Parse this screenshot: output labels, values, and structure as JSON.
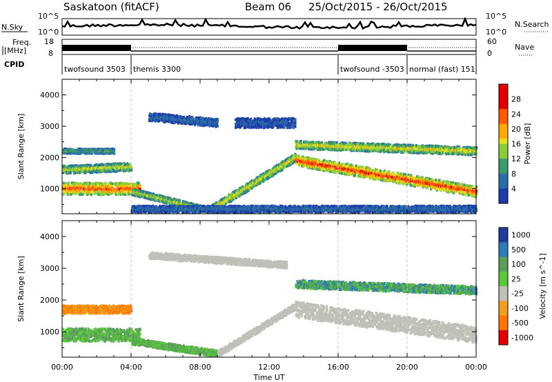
{
  "header": {
    "title": "Saskatoon (fitACF)",
    "beam": "Beam 06",
    "date_range": "25/Oct/2015 - 26/Oct/2015"
  },
  "strips": {
    "noise": {
      "left_label": "N.Sky",
      "left_ticks": [
        "10^5",
        "10^0"
      ],
      "right_ticks": [
        "10^5",
        "10^0"
      ],
      "right_label": "N.Search"
    },
    "freq": {
      "left_label": "Freq.",
      "left_units": "[MHz]",
      "left_ticks": [
        "18",
        "8"
      ],
      "right_ticks": [
        "60",
        "0"
      ],
      "right_label": "Nave"
    },
    "cpid": {
      "label": "CPID",
      "segments": [
        {
          "name": "twofsound 3503",
          "start": "00:00",
          "end": "04:00"
        },
        {
          "name": "themis 3300",
          "start": "04:00",
          "end": "16:00"
        },
        {
          "name": "twofsound -3503",
          "start": "16:00",
          "end": "20:00"
        },
        {
          "name": "normal (fast) 151",
          "start": "20:00",
          "end": "24:00"
        }
      ]
    }
  },
  "chart_data": [
    {
      "type": "heatmap",
      "name": "power",
      "ylabel": "Slant Range [km]",
      "ylim": [
        200,
        4500
      ],
      "yticks": [
        1000,
        2000,
        3000,
        4000
      ],
      "xlim_hours": [
        0,
        24
      ],
      "colorbar": {
        "label": "Power [dB]",
        "range": [
          0,
          32
        ],
        "ticks": [
          4,
          8,
          12,
          16,
          20,
          24,
          28
        ]
      },
      "features": [
        {
          "desc": "band",
          "t0": 0.0,
          "t1": 4.5,
          "range_km": [
            1000,
            1000
          ],
          "width_km": 380,
          "level": 0.75
        },
        {
          "desc": "band",
          "t0": 0.0,
          "t1": 4.0,
          "range_km": [
            1600,
            1700
          ],
          "width_km": 250,
          "level": 0.5
        },
        {
          "desc": "band",
          "t0": 0.0,
          "t1": 3.0,
          "range_km": [
            2200,
            2200
          ],
          "width_km": 150,
          "level": 0.35
        },
        {
          "desc": "band",
          "t0": 4.0,
          "t1": 8.5,
          "range_km": [
            900,
            300
          ],
          "width_km": 200,
          "level": 0.5
        },
        {
          "desc": "band",
          "t0": 8.5,
          "t1": 13.5,
          "range_km": [
            300,
            2000
          ],
          "width_km": 250,
          "level": 0.55
        },
        {
          "desc": "band",
          "t0": 5.0,
          "t1": 9.0,
          "range_km": [
            3300,
            3100
          ],
          "width_km": 250,
          "level": 0.2
        },
        {
          "desc": "band",
          "t0": 10.0,
          "t1": 13.5,
          "range_km": [
            3100,
            3100
          ],
          "width_km": 300,
          "level": 0.15
        },
        {
          "desc": "band",
          "t0": 13.5,
          "t1": 24.0,
          "range_km": [
            1900,
            900
          ],
          "width_km": 330,
          "level": 0.8
        },
        {
          "desc": "band",
          "t0": 13.5,
          "t1": 24.0,
          "range_km": [
            2400,
            2200
          ],
          "width_km": 250,
          "level": 0.55
        },
        {
          "desc": "band",
          "t0": 4.0,
          "t1": 24.0,
          "range_km": [
            350,
            350
          ],
          "width_km": 200,
          "level": 0.2
        }
      ]
    },
    {
      "type": "heatmap",
      "name": "velocity",
      "ylabel": "Slant Range [km]",
      "xlabel": "Time UT",
      "ylim": [
        200,
        4500
      ],
      "yticks": [
        1000,
        2000,
        3000,
        4000
      ],
      "xlim_hours": [
        0,
        24
      ],
      "xticks": [
        "00:00",
        "04:00",
        "08:00",
        "12:00",
        "16:00",
        "20:00",
        "00:00"
      ],
      "colorbar": {
        "label": "Velocity [m s^-1]",
        "ticks": [
          "1000",
          "500",
          "100",
          "25",
          "-25",
          "-100",
          "-500",
          "-1000"
        ],
        "colors": [
          "#1f3c9a",
          "#2e7bb8",
          "#5a9e5a",
          "#5ac83c",
          "#c0c0b8",
          "#f0a020",
          "#ff7700",
          "#e00000"
        ]
      },
      "features": [
        {
          "desc": "band",
          "t0": 0.0,
          "t1": 4.5,
          "range_km": [
            900,
            900
          ],
          "width_km": 400,
          "class": "positive-low"
        },
        {
          "desc": "band",
          "t0": 0.0,
          "t1": 4.0,
          "range_km": [
            1700,
            1700
          ],
          "width_km": 250,
          "class": "negative-mid"
        },
        {
          "desc": "band",
          "t0": 4.0,
          "t1": 9.0,
          "range_km": [
            700,
            300
          ],
          "width_km": 200,
          "class": "positive-low"
        },
        {
          "desc": "band",
          "t0": 9.0,
          "t1": 13.5,
          "range_km": [
            300,
            1800
          ],
          "width_km": 200,
          "class": "near-zero"
        },
        {
          "desc": "band",
          "t0": 13.5,
          "t1": 24.0,
          "range_km": [
            1700,
            900
          ],
          "width_km": 500,
          "class": "near-zero"
        },
        {
          "desc": "band",
          "t0": 13.5,
          "t1": 24.0,
          "range_km": [
            2500,
            2300
          ],
          "width_km": 250,
          "class": "positive-mid"
        },
        {
          "desc": "band",
          "t0": 5.0,
          "t1": 13.0,
          "range_km": [
            3400,
            3100
          ],
          "width_km": 200,
          "class": "near-zero"
        }
      ]
    }
  ],
  "colors": {
    "dashed_guides": "#c8c8c8",
    "frame": "#000000"
  }
}
